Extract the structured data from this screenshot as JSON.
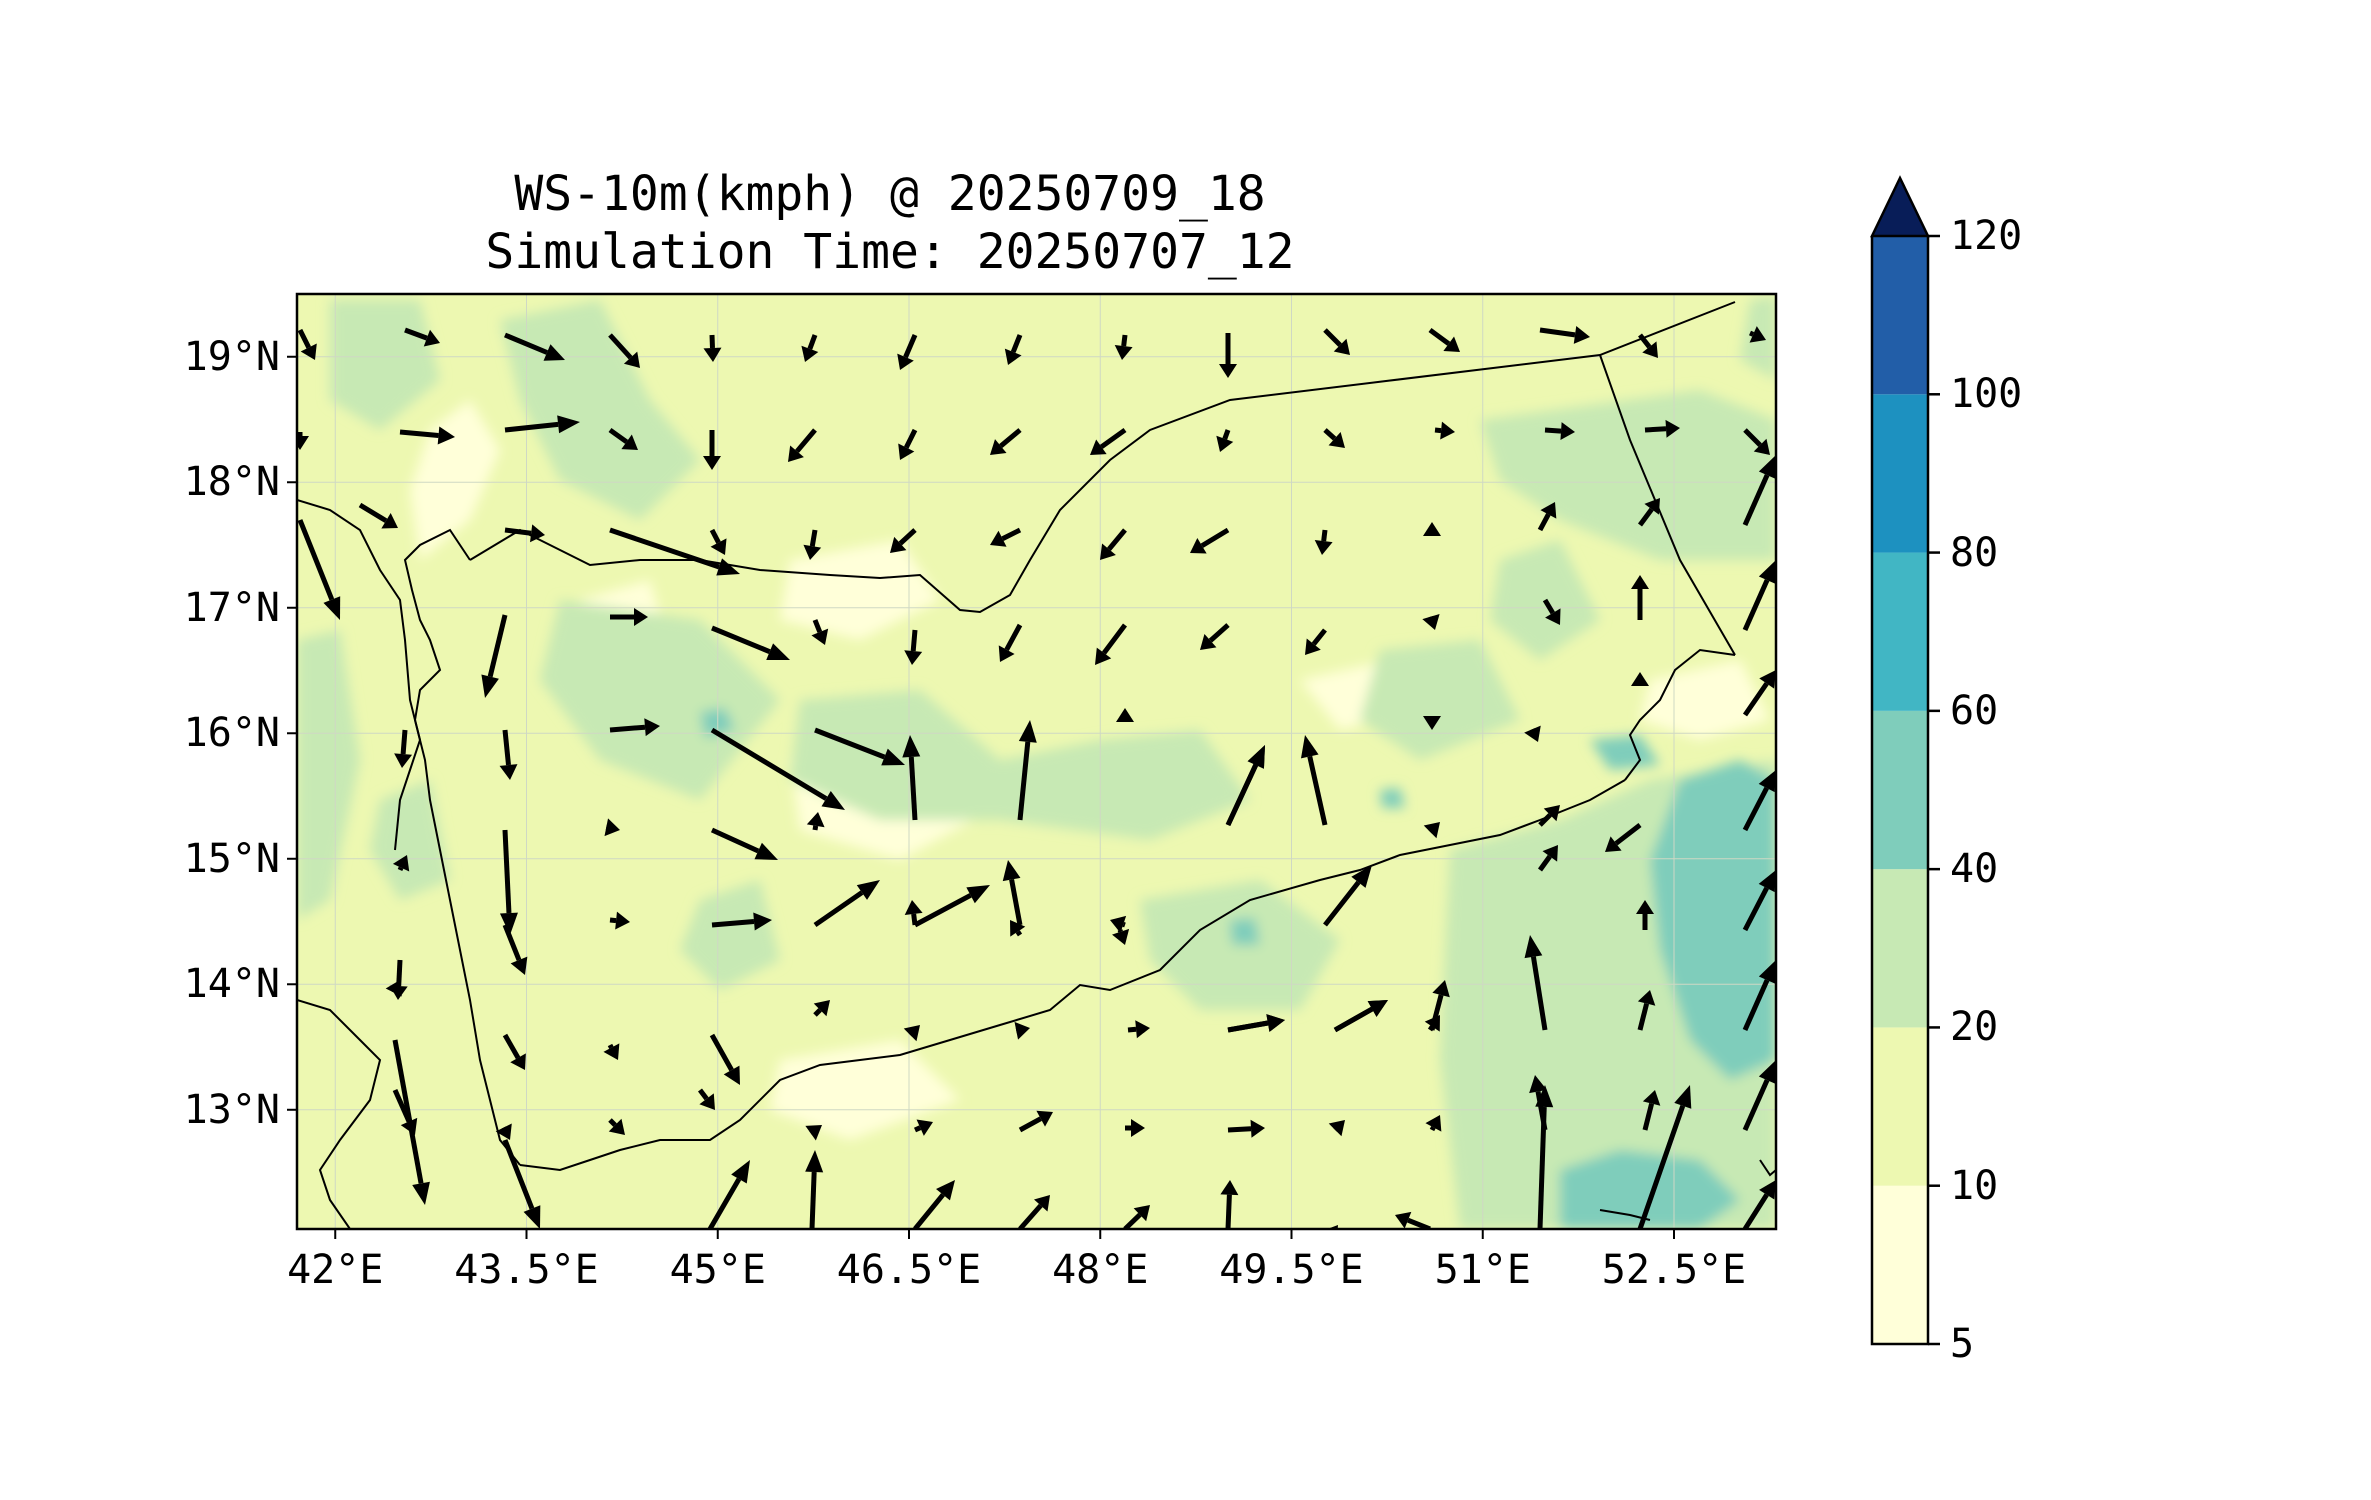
{
  "title": {
    "line1": "WS-10m(kmph) @ 20250709_18",
    "line2": "Simulation Time: 20250707_12"
  },
  "map": {
    "extent": {
      "lon_min": 41.7,
      "lon_max": 53.3,
      "lat_min": 12.05,
      "lat_max": 19.5
    },
    "lat_ticks": [
      "19°N",
      "18°N",
      "17°N",
      "16°N",
      "15°N",
      "14°N",
      "13°N"
    ],
    "lon_ticks": [
      "42°E",
      "43.5°E",
      "45°E",
      "46.5°E",
      "48°E",
      "49.5°E",
      "51°E",
      "52.5°E"
    ],
    "gridlines": true,
    "variable": "WS-10m",
    "units": "kmph"
  },
  "colorbar": {
    "levels": [
      5,
      10,
      20,
      40,
      60,
      80,
      100,
      120
    ],
    "tick_labels": [
      "5",
      "10",
      "20",
      "40",
      "60",
      "80",
      "100",
      "120"
    ],
    "colors": [
      "#ffffd9",
      "#edf8b1",
      "#c7e9b4",
      "#7fcdbb",
      "#41b6c4",
      "#1d91c0",
      "#225ea8",
      "#253494"
    ],
    "extend_color": "#081d58",
    "extend": "max"
  },
  "colors": {
    "coast": "#000000",
    "arrow": "#000000",
    "grid": "#cfd8c4"
  }
}
